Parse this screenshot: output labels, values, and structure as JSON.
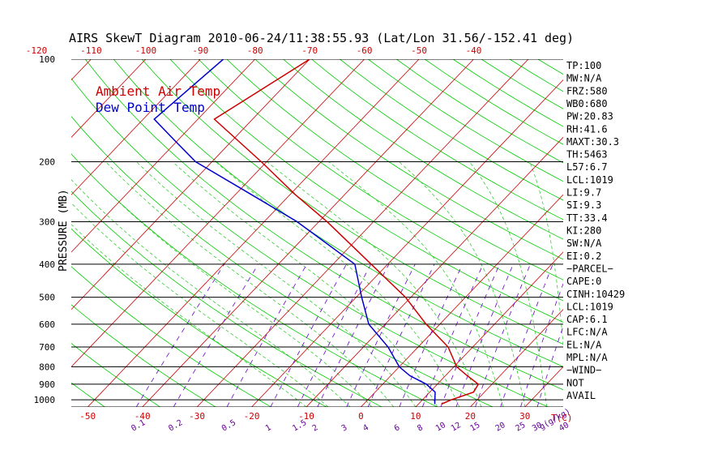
{
  "chart_data": {
    "type": "line",
    "title": "AIRS SkewT Diagram 2010-06-24/11:38:55.93 (Lat/Lon 31.56/-152.41 deg)",
    "ylabel": "PRESSURE (MB)",
    "x_unit_label": "T(C)",
    "mixing_ratio_unit_label": "g(g/kg)",
    "pressure_scale": "log",
    "ylim": [
      1050,
      100
    ],
    "xlim_bottom": [
      -53,
      37
    ],
    "pressure_ticks": [
      100,
      200,
      300,
      400,
      500,
      600,
      700,
      800,
      900,
      1000
    ],
    "pressure_tick_labels": [
      "100",
      "200",
      "300",
      "400",
      "500",
      "600",
      "700",
      "800",
      "900",
      "1000"
    ],
    "bottom_temperature_ticks": [
      -50,
      -40,
      -30,
      -20,
      -10,
      0,
      10,
      20,
      30
    ],
    "bottom_temperature_tick_labels": [
      "-50",
      "-40",
      "-30",
      "-20",
      "-10",
      "0",
      "10",
      "20",
      "30"
    ],
    "top_temperature_ticks": [
      -120,
      -110,
      -100,
      -90,
      -80,
      -70,
      -60,
      -50,
      -40
    ],
    "top_temperature_tick_labels": [
      "-120",
      "-110",
      "-100",
      "-90",
      "-80",
      "-70",
      "-60",
      "-50",
      "-40"
    ],
    "mixing_ratio_values": [
      0.1,
      0.2,
      0.5,
      1,
      1.5,
      2,
      3,
      4,
      6,
      8,
      10,
      12,
      15,
      20,
      25,
      30,
      40
    ],
    "mixing_ratio_labels": [
      "0.1",
      "0.2",
      "0.5",
      "1",
      "1.5",
      "2",
      "3",
      "4",
      "6",
      "8",
      "10",
      "12",
      "15",
      "20",
      "25",
      "30",
      "40"
    ],
    "grid": true,
    "legend": [
      "Ambient Air Temp",
      "Dew Point Temp"
    ],
    "legend_placement": "top-left",
    "series": [
      {
        "name": "Ambient Air Temp",
        "color": "#cc0000",
        "points": [
          {
            "p": 100,
            "t": -70.0
          },
          {
            "p": 150,
            "t": -77.0
          },
          {
            "p": 200,
            "t": -61.0
          },
          {
            "p": 250,
            "t": -49.0
          },
          {
            "p": 300,
            "t": -38.5
          },
          {
            "p": 400,
            "t": -23.0
          },
          {
            "p": 500,
            "t": -11.0
          },
          {
            "p": 600,
            "t": -2.5
          },
          {
            "p": 700,
            "t": 5.5
          },
          {
            "p": 800,
            "t": 10.5
          },
          {
            "p": 850,
            "t": 14.0
          },
          {
            "p": 900,
            "t": 17.5
          },
          {
            "p": 950,
            "t": 18.0
          },
          {
            "p": 1000,
            "t": 15.3
          },
          {
            "p": 1030,
            "t": 14.2
          }
        ]
      },
      {
        "name": "Dew Point Temp",
        "color": "#0000cc",
        "points": [
          {
            "p": 100,
            "t": -85.8
          },
          {
            "p": 150,
            "t": -88.0
          },
          {
            "p": 175,
            "t": -80.0
          },
          {
            "p": 200,
            "t": -73.0
          },
          {
            "p": 250,
            "t": -57.0
          },
          {
            "p": 300,
            "t": -44.0
          },
          {
            "p": 400,
            "t": -26.0
          },
          {
            "p": 500,
            "t": -19.0
          },
          {
            "p": 600,
            "t": -13.0
          },
          {
            "p": 700,
            "t": -5.5
          },
          {
            "p": 800,
            "t": 0.0
          },
          {
            "p": 850,
            "t": 3.5
          },
          {
            "p": 900,
            "t": 8.0
          },
          {
            "p": 950,
            "t": 11.0
          },
          {
            "p": 1030,
            "t": 13.0
          }
        ]
      }
    ]
  },
  "indices": [
    "TP:100",
    "MW:N/A",
    "FRZ:580",
    "WB0:680",
    "PW:20.83",
    "RH:41.6",
    "MAXT:30.3",
    "TH:5463",
    "L57:6.7",
    "LCL:1019",
    "LI:9.7",
    "SI:9.3",
    "TT:33.4",
    "KI:280",
    "SW:N/A",
    "EI:0.2",
    "−PARCEL−",
    "CAPE:0",
    "CINH:10429",
    "LCL:1019",
    "CAP:6.1",
    "LFC:N/A",
    "EL:N/A",
    "MPL:N/A",
    "−WIND−",
    " NOT",
    " AVAIL"
  ],
  "colors": {
    "isotherm": "#cc0000",
    "dry_adiabat": "#00cc00",
    "moist_adiabat": "#33cc33",
    "mixing_ratio": "#6600cc",
    "axis_text": "#000000",
    "top_ticks": "#cc0000",
    "bottom_ticks": "#cc0000",
    "mixing_labels": "#660099"
  }
}
